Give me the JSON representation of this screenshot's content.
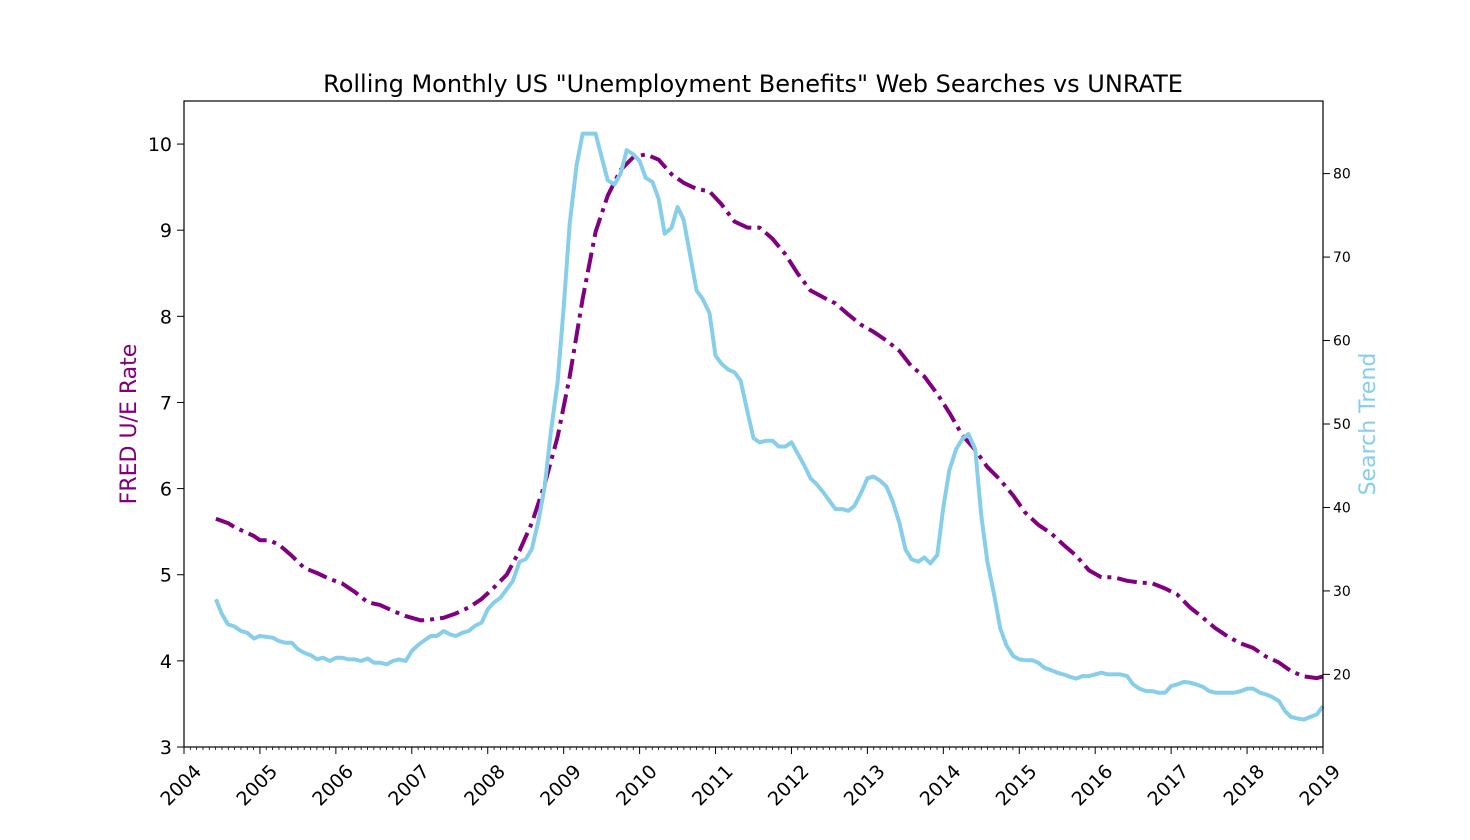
{
  "chart_data": {
    "type": "line",
    "title": "Rolling Monthly US \"Unemployment Benefits\" Web Searches vs UNRATE",
    "xlabel": "",
    "ylabel_left": "FRED U/E Rate",
    "ylabel_right": "Search Trend",
    "xlim": [
      2004.0,
      2019.0
    ],
    "ylim_left": [
      3,
      10.5
    ],
    "ylim_right": [
      11.3,
      88.7
    ],
    "x_ticks": [
      2004,
      2005,
      2006,
      2007,
      2008,
      2009,
      2010,
      2011,
      2012,
      2013,
      2014,
      2015,
      2016,
      2017,
      2018,
      2019
    ],
    "y_ticks_left": [
      3,
      4,
      5,
      6,
      7,
      8,
      9,
      10
    ],
    "y_ticks_right": [
      20,
      30,
      40,
      50,
      60,
      70,
      80
    ],
    "grid": false,
    "series": [
      {
        "name": "FRED U/E Rate",
        "axis": "left",
        "color": "#800080",
        "style": "dashdot",
        "points": [
          [
            2004.42,
            5.65
          ],
          [
            2004.58,
            5.6
          ],
          [
            2004.67,
            5.55
          ],
          [
            2004.92,
            5.45
          ],
          [
            2005.0,
            5.4
          ],
          [
            2005.12,
            5.4
          ],
          [
            2005.25,
            5.35
          ],
          [
            2005.42,
            5.22
          ],
          [
            2005.58,
            5.08
          ],
          [
            2005.75,
            5.02
          ],
          [
            2005.92,
            4.95
          ],
          [
            2006.08,
            4.9
          ],
          [
            2006.25,
            4.8
          ],
          [
            2006.42,
            4.68
          ],
          [
            2006.58,
            4.65
          ],
          [
            2006.75,
            4.58
          ],
          [
            2006.92,
            4.52
          ],
          [
            2007.12,
            4.47
          ],
          [
            2007.25,
            4.48
          ],
          [
            2007.42,
            4.5
          ],
          [
            2007.58,
            4.55
          ],
          [
            2007.75,
            4.62
          ],
          [
            2007.92,
            4.72
          ],
          [
            2008.08,
            4.85
          ],
          [
            2008.25,
            5.0
          ],
          [
            2008.42,
            5.28
          ],
          [
            2008.58,
            5.6
          ],
          [
            2008.75,
            6.05
          ],
          [
            2008.92,
            6.6
          ],
          [
            2009.08,
            7.3
          ],
          [
            2009.25,
            8.2
          ],
          [
            2009.42,
            8.98
          ],
          [
            2009.58,
            9.4
          ],
          [
            2009.75,
            9.7
          ],
          [
            2009.92,
            9.85
          ],
          [
            2010.08,
            9.88
          ],
          [
            2010.25,
            9.82
          ],
          [
            2010.42,
            9.65
          ],
          [
            2010.58,
            9.55
          ],
          [
            2010.75,
            9.48
          ],
          [
            2010.92,
            9.45
          ],
          [
            2011.08,
            9.3
          ],
          [
            2011.25,
            9.1
          ],
          [
            2011.42,
            9.03
          ],
          [
            2011.58,
            9.03
          ],
          [
            2011.75,
            8.9
          ],
          [
            2011.92,
            8.72
          ],
          [
            2012.08,
            8.5
          ],
          [
            2012.25,
            8.3
          ],
          [
            2012.42,
            8.22
          ],
          [
            2012.58,
            8.15
          ],
          [
            2012.75,
            8.02
          ],
          [
            2012.92,
            7.9
          ],
          [
            2013.08,
            7.82
          ],
          [
            2013.25,
            7.72
          ],
          [
            2013.42,
            7.6
          ],
          [
            2013.58,
            7.42
          ],
          [
            2013.75,
            7.3
          ],
          [
            2013.92,
            7.1
          ],
          [
            2014.08,
            6.88
          ],
          [
            2014.25,
            6.62
          ],
          [
            2014.42,
            6.45
          ],
          [
            2014.58,
            6.25
          ],
          [
            2014.75,
            6.1
          ],
          [
            2014.92,
            5.92
          ],
          [
            2015.08,
            5.72
          ],
          [
            2015.25,
            5.58
          ],
          [
            2015.42,
            5.48
          ],
          [
            2015.58,
            5.35
          ],
          [
            2015.75,
            5.22
          ],
          [
            2015.92,
            5.05
          ],
          [
            2016.08,
            4.97
          ],
          [
            2016.25,
            4.97
          ],
          [
            2016.42,
            4.93
          ],
          [
            2016.58,
            4.91
          ],
          [
            2016.75,
            4.9
          ],
          [
            2016.92,
            4.84
          ],
          [
            2017.08,
            4.77
          ],
          [
            2017.25,
            4.62
          ],
          [
            2017.42,
            4.5
          ],
          [
            2017.58,
            4.38
          ],
          [
            2017.75,
            4.28
          ],
          [
            2017.92,
            4.2
          ],
          [
            2018.08,
            4.15
          ],
          [
            2018.25,
            4.05
          ],
          [
            2018.42,
            3.98
          ],
          [
            2018.58,
            3.88
          ],
          [
            2018.75,
            3.82
          ],
          [
            2018.92,
            3.8
          ],
          [
            2019.0,
            3.82
          ]
        ]
      },
      {
        "name": "Search Trend",
        "axis": "right",
        "color": "#87ceeb",
        "style": "solid",
        "points": [
          [
            2004.42,
            29.0
          ],
          [
            2004.5,
            27.2
          ],
          [
            2004.58,
            26.0
          ],
          [
            2004.67,
            25.7
          ],
          [
            2004.75,
            25.2
          ],
          [
            2004.83,
            25.0
          ],
          [
            2004.92,
            24.3
          ],
          [
            2005.0,
            24.6
          ],
          [
            2005.08,
            24.5
          ],
          [
            2005.17,
            24.4
          ],
          [
            2005.25,
            24.0
          ],
          [
            2005.33,
            23.8
          ],
          [
            2005.42,
            23.8
          ],
          [
            2005.5,
            23.0
          ],
          [
            2005.58,
            22.6
          ],
          [
            2005.67,
            22.3
          ],
          [
            2005.75,
            21.8
          ],
          [
            2005.83,
            22.0
          ],
          [
            2005.92,
            21.6
          ],
          [
            2006.0,
            22.0
          ],
          [
            2006.08,
            22.0
          ],
          [
            2006.17,
            21.8
          ],
          [
            2006.25,
            21.8
          ],
          [
            2006.33,
            21.6
          ],
          [
            2006.42,
            21.9
          ],
          [
            2006.5,
            21.4
          ],
          [
            2006.58,
            21.4
          ],
          [
            2006.67,
            21.2
          ],
          [
            2006.75,
            21.6
          ],
          [
            2006.83,
            21.8
          ],
          [
            2006.92,
            21.6
          ],
          [
            2007.0,
            22.8
          ],
          [
            2007.08,
            23.5
          ],
          [
            2007.17,
            24.1
          ],
          [
            2007.25,
            24.6
          ],
          [
            2007.33,
            24.6
          ],
          [
            2007.42,
            25.2
          ],
          [
            2007.5,
            24.8
          ],
          [
            2007.58,
            24.6
          ],
          [
            2007.67,
            25.0
          ],
          [
            2007.75,
            25.2
          ],
          [
            2007.83,
            25.8
          ],
          [
            2007.92,
            26.2
          ],
          [
            2008.0,
            27.8
          ],
          [
            2008.08,
            28.6
          ],
          [
            2008.17,
            29.2
          ],
          [
            2008.25,
            30.2
          ],
          [
            2008.33,
            31.2
          ],
          [
            2008.42,
            33.5
          ],
          [
            2008.5,
            33.8
          ],
          [
            2008.58,
            35.0
          ],
          [
            2008.67,
            38.5
          ],
          [
            2008.75,
            42.5
          ],
          [
            2008.83,
            49.0
          ],
          [
            2008.92,
            55.0
          ],
          [
            2009.0,
            64.0
          ],
          [
            2009.08,
            74.0
          ],
          [
            2009.17,
            81.0
          ],
          [
            2009.25,
            84.8
          ],
          [
            2009.33,
            84.8
          ],
          [
            2009.42,
            84.8
          ],
          [
            2009.5,
            82.0
          ],
          [
            2009.58,
            79.2
          ],
          [
            2009.67,
            78.7
          ],
          [
            2009.75,
            80.0
          ],
          [
            2009.83,
            82.8
          ],
          [
            2009.92,
            82.3
          ],
          [
            2010.0,
            81.5
          ],
          [
            2010.08,
            79.5
          ],
          [
            2010.17,
            79.0
          ],
          [
            2010.25,
            77.0
          ],
          [
            2010.33,
            72.8
          ],
          [
            2010.42,
            73.5
          ],
          [
            2010.5,
            76.0
          ],
          [
            2010.58,
            74.5
          ],
          [
            2010.67,
            70.0
          ],
          [
            2010.75,
            66.0
          ],
          [
            2010.83,
            65.0
          ],
          [
            2010.92,
            63.3
          ],
          [
            2011.0,
            58.2
          ],
          [
            2011.08,
            57.2
          ],
          [
            2011.17,
            56.5
          ],
          [
            2011.25,
            56.2
          ],
          [
            2011.33,
            55.2
          ],
          [
            2011.42,
            51.5
          ],
          [
            2011.5,
            48.3
          ],
          [
            2011.58,
            47.8
          ],
          [
            2011.67,
            48.0
          ],
          [
            2011.75,
            48.0
          ],
          [
            2011.83,
            47.3
          ],
          [
            2011.92,
            47.3
          ],
          [
            2012.0,
            47.8
          ],
          [
            2012.08,
            46.5
          ],
          [
            2012.17,
            45.0
          ],
          [
            2012.25,
            43.5
          ],
          [
            2012.33,
            42.8
          ],
          [
            2012.42,
            41.8
          ],
          [
            2012.5,
            40.8
          ],
          [
            2012.58,
            39.8
          ],
          [
            2012.67,
            39.8
          ],
          [
            2012.75,
            39.6
          ],
          [
            2012.83,
            40.2
          ],
          [
            2012.92,
            41.8
          ],
          [
            2013.0,
            43.5
          ],
          [
            2013.08,
            43.7
          ],
          [
            2013.17,
            43.2
          ],
          [
            2013.25,
            42.5
          ],
          [
            2013.33,
            40.8
          ],
          [
            2013.42,
            38.2
          ],
          [
            2013.5,
            35.0
          ],
          [
            2013.58,
            33.8
          ],
          [
            2013.67,
            33.5
          ],
          [
            2013.75,
            34.0
          ],
          [
            2013.83,
            33.3
          ],
          [
            2013.92,
            34.3
          ],
          [
            2014.0,
            40.0
          ],
          [
            2014.08,
            44.5
          ],
          [
            2014.17,
            47.0
          ],
          [
            2014.25,
            48.2
          ],
          [
            2014.33,
            48.8
          ],
          [
            2014.42,
            47.0
          ],
          [
            2014.5,
            39.0
          ],
          [
            2014.58,
            33.5
          ],
          [
            2014.67,
            29.5
          ],
          [
            2014.75,
            25.5
          ],
          [
            2014.83,
            23.5
          ],
          [
            2014.92,
            22.2
          ],
          [
            2015.0,
            21.8
          ],
          [
            2015.08,
            21.7
          ],
          [
            2015.17,
            21.7
          ],
          [
            2015.25,
            21.4
          ],
          [
            2015.33,
            20.8
          ],
          [
            2015.42,
            20.5
          ],
          [
            2015.5,
            20.2
          ],
          [
            2015.58,
            20.0
          ],
          [
            2015.67,
            19.7
          ],
          [
            2015.75,
            19.5
          ],
          [
            2015.83,
            19.8
          ],
          [
            2015.92,
            19.8
          ],
          [
            2016.0,
            20.0
          ],
          [
            2016.08,
            20.2
          ],
          [
            2016.17,
            20.0
          ],
          [
            2016.25,
            20.0
          ],
          [
            2016.33,
            20.0
          ],
          [
            2016.42,
            19.8
          ],
          [
            2016.5,
            18.8
          ],
          [
            2016.58,
            18.3
          ],
          [
            2016.67,
            18.0
          ],
          [
            2016.75,
            18.0
          ],
          [
            2016.83,
            17.8
          ],
          [
            2016.92,
            17.8
          ],
          [
            2017.0,
            18.6
          ],
          [
            2017.08,
            18.8
          ],
          [
            2017.17,
            19.1
          ],
          [
            2017.25,
            19.0
          ],
          [
            2017.33,
            18.8
          ],
          [
            2017.42,
            18.5
          ],
          [
            2017.5,
            18.0
          ],
          [
            2017.58,
            17.8
          ],
          [
            2017.67,
            17.8
          ],
          [
            2017.75,
            17.8
          ],
          [
            2017.83,
            17.8
          ],
          [
            2017.92,
            18.0
          ],
          [
            2018.0,
            18.3
          ],
          [
            2018.08,
            18.3
          ],
          [
            2018.17,
            17.8
          ],
          [
            2018.25,
            17.6
          ],
          [
            2018.33,
            17.3
          ],
          [
            2018.42,
            16.8
          ],
          [
            2018.5,
            15.6
          ],
          [
            2018.58,
            14.9
          ],
          [
            2018.67,
            14.7
          ],
          [
            2018.75,
            14.6
          ],
          [
            2018.83,
            14.9
          ],
          [
            2018.92,
            15.2
          ],
          [
            2019.0,
            16.2
          ]
        ]
      }
    ]
  }
}
